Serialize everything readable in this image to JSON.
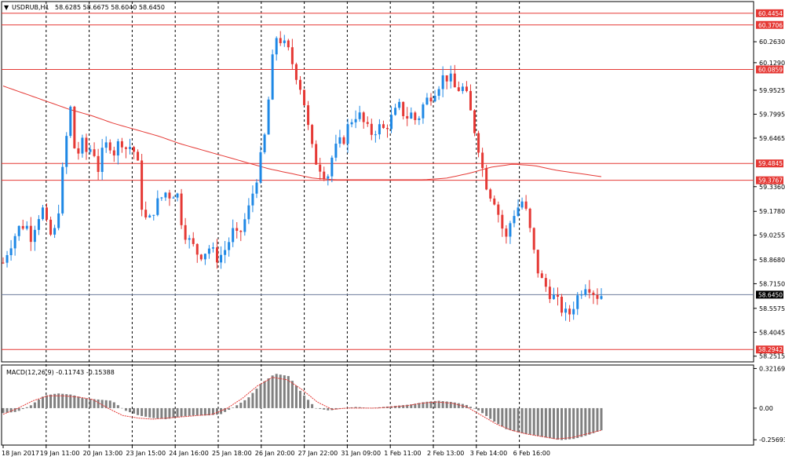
{
  "window": {
    "symbol_header": "USDRUB,H1",
    "ohlc_header": "58.6285 58.6675 58.6040 58.6450"
  },
  "colors": {
    "bull": "#1e88e5",
    "bear": "#e53935",
    "hline": "#e53935",
    "ma": "#e53935",
    "current_line": "#6b7c9c",
    "grid": "#000000",
    "macd_hist": "#808080",
    "macd_signal": "#e53935"
  },
  "chart_data": {
    "type": "candlestick",
    "symbol": "USDRUB",
    "timeframe": "H1",
    "yaxis_ticks": [
      "60.2630",
      "60.1290",
      "59.9525",
      "59.7995",
      "59.6465",
      "59.3360",
      "59.1780",
      "59.0255",
      "58.8680",
      "58.7150",
      "58.5575",
      "58.4045",
      "58.2515"
    ],
    "horizontal_levels": [
      {
        "value": 60.4454,
        "label": "60.4454"
      },
      {
        "value": 60.3706,
        "label": "60.3706"
      },
      {
        "value": 60.0859,
        "label": "60.0859"
      },
      {
        "value": 59.4845,
        "label": "59.4845"
      },
      {
        "value": 59.3767,
        "label": "59.3767"
      },
      {
        "value": 58.2942,
        "label": "58.2942"
      }
    ],
    "current_price": {
      "value": 58.645,
      "label": "58.6450"
    },
    "xaxis_labels": [
      "18 Jan 2017",
      "19 Jan 11:00",
      "20 Jan 13:00",
      "23 Jan 15:00",
      "24 Jan 16:00",
      "25 Jan 18:00",
      "26 Jan 20:00",
      "27 Jan 22:00",
      "31 Jan 09:00",
      "1 Feb 11:00",
      "2 Feb 13:00",
      "3 Feb 14:00",
      "6 Feb 16:00"
    ],
    "close_path": [
      58.85,
      58.95,
      59.02,
      59.08,
      59.1,
      59.02,
      59.13,
      59.2,
      59.05,
      59.0,
      59.22,
      59.55,
      59.85,
      59.5,
      59.62,
      59.55,
      59.6,
      59.45,
      59.58,
      59.62,
      59.55,
      59.65,
      59.58,
      59.6,
      59.5,
      59.15,
      59.1,
      59.2,
      59.25,
      59.3,
      59.28,
      59.32,
      59.1,
      59.0,
      58.95,
      58.9,
      58.92,
      58.95,
      58.88,
      58.9,
      58.95,
      59.05,
      59.0,
      59.1,
      59.2,
      59.35,
      59.5,
      59.7,
      60.1,
      60.32,
      60.25,
      60.2,
      60.1,
      60.0,
      59.85,
      59.6,
      59.5,
      59.45,
      59.4,
      59.55,
      59.6,
      59.65,
      59.75,
      59.8,
      59.78,
      59.7,
      59.68,
      59.72,
      59.7,
      59.75,
      59.8,
      59.85,
      59.78,
      59.8,
      59.75,
      59.85,
      59.9,
      59.95,
      60.0,
      60.05,
      60.02,
      59.95,
      59.98,
      59.9,
      59.75,
      59.6,
      59.4,
      59.3,
      59.25,
      59.1,
      59.0,
      59.15,
      59.2,
      59.25,
      59.1,
      58.9,
      58.75,
      58.7,
      58.65,
      58.6,
      58.55,
      58.5,
      58.58,
      58.65,
      58.72,
      58.7,
      58.64,
      58.645
    ],
    "ma_path": [
      59.98,
      59.93,
      59.88,
      59.83,
      59.79,
      59.74,
      59.7,
      59.66,
      59.61,
      59.57,
      59.53,
      59.49,
      59.45,
      59.42,
      59.39,
      59.38,
      59.38,
      59.38,
      59.38,
      59.38,
      59.39,
      59.42,
      59.46,
      59.48,
      59.47,
      59.44,
      59.42,
      59.4
    ],
    "macd": {
      "label": "MACD(12,26,9) -0.11743 -0.15388",
      "ticks": [
        "0.32169",
        "0.00",
        "-0.25693"
      ],
      "hist_path": [
        -0.04,
        -0.03,
        0.02,
        0.1,
        0.12,
        0.11,
        0.08,
        0.07,
        0.06,
        -0.02,
        -0.06,
        -0.08,
        -0.09,
        -0.07,
        -0.06,
        -0.06,
        -0.05,
        0.01,
        0.08,
        0.2,
        0.28,
        0.26,
        0.12,
        0.0,
        -0.02,
        0.0,
        0.01,
        0.0,
        0.01,
        0.02,
        0.03,
        0.05,
        0.06,
        0.05,
        0.03,
        -0.02,
        -0.1,
        -0.17,
        -0.2,
        -0.22,
        -0.24,
        -0.26,
        -0.25,
        -0.22,
        -0.18
      ],
      "signal_path": [
        -0.05,
        0.0,
        0.06,
        0.1,
        0.1,
        0.09,
        0.07,
        0.0,
        -0.06,
        -0.08,
        -0.09,
        -0.08,
        -0.07,
        -0.06,
        -0.05,
        0.0,
        0.08,
        0.18,
        0.25,
        0.23,
        0.15,
        0.05,
        -0.01,
        0.0,
        0.0,
        0.0,
        0.01,
        0.02,
        0.04,
        0.05,
        0.04,
        0.01,
        -0.06,
        -0.13,
        -0.18,
        -0.21,
        -0.23,
        -0.25,
        -0.24,
        -0.21,
        -0.18
      ]
    }
  }
}
